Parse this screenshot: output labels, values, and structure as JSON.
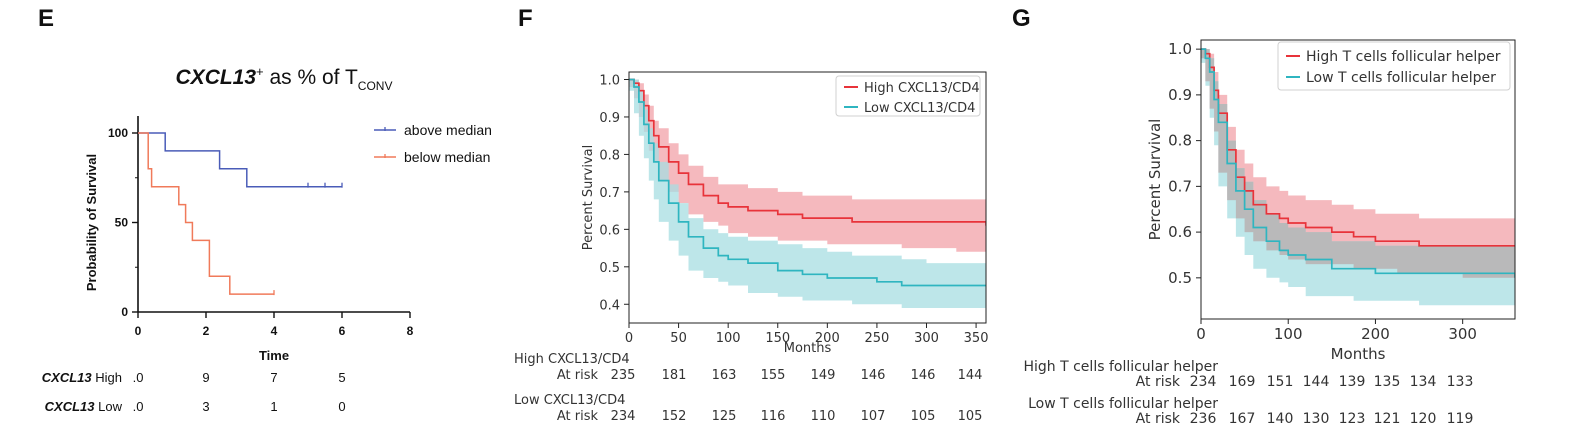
{
  "panels": {
    "e": "E",
    "f": "F",
    "g": "G"
  },
  "chart_data": [
    {
      "panel": "E",
      "type": "line",
      "title_main": "CXCL13",
      "title_sup": "+",
      "title_rest": " as % of T",
      "title_sub": "CONV",
      "xlabel": "Time",
      "ylabel": "Probability of Survival",
      "xlim": [
        0,
        8
      ],
      "ylim": [
        0,
        100
      ],
      "xticks": [
        0,
        2,
        4,
        6,
        8
      ],
      "yticks": [
        0,
        50,
        100
      ],
      "grid": false,
      "legend_position": "top-right",
      "series": [
        {
          "name": "above median",
          "color": "#4a5cb8",
          "x": [
            0,
            0.8,
            0.8,
            2.4,
            2.4,
            3.2,
            3.2,
            6
          ],
          "y": [
            100,
            100,
            90,
            90,
            80,
            80,
            70,
            70
          ],
          "censor_x": [
            5,
            5.5,
            6
          ],
          "censor_y": [
            70,
            70,
            70
          ]
        },
        {
          "name": "below median",
          "color": "#f07a5a",
          "x": [
            0,
            0.3,
            0.3,
            0.4,
            0.4,
            1.2,
            1.2,
            1.4,
            1.4,
            1.6,
            1.6,
            2.1,
            2.1,
            2.7,
            2.7,
            4
          ],
          "y": [
            100,
            100,
            80,
            80,
            70,
            70,
            60,
            60,
            50,
            50,
            40,
            40,
            20,
            20,
            10,
            10
          ],
          "censor_x": [
            4
          ],
          "censor_y": [
            10
          ]
        }
      ],
      "risk_table": {
        "rows": [
          {
            "label_gene": "CXCL13",
            "label_rest": " High",
            "values": [
              ".0",
              "9",
              "7",
              "5"
            ]
          },
          {
            "label_gene": "CXCL13",
            "label_rest": " Low",
            "values": [
              ".0",
              "3",
              "1",
              "0"
            ]
          }
        ]
      }
    },
    {
      "panel": "F",
      "type": "line",
      "xlabel": "Months",
      "ylabel": "Percent Survival",
      "xlim": [
        0,
        360
      ],
      "ylim": [
        0.35,
        1.02
      ],
      "xticks": [
        0,
        50,
        100,
        150,
        200,
        250,
        300,
        350
      ],
      "yticks": [
        0.4,
        0.5,
        0.6,
        0.7,
        0.8,
        0.9,
        1.0
      ],
      "ytick_labels": [
        "0.4",
        "0.5",
        "0.6",
        "0.7",
        "0.8",
        "0.9",
        "1.0"
      ],
      "grid": false,
      "legend_position": "top-right",
      "series": [
        {
          "name": "High CXCL13/CD4",
          "color": "#e8333a",
          "band_color": "#f2a2a8",
          "x": [
            0,
            5,
            10,
            15,
            20,
            25,
            30,
            40,
            50,
            60,
            75,
            90,
            100,
            120,
            150,
            175,
            200,
            225,
            250,
            275,
            300,
            330,
            360
          ],
          "y": [
            1.0,
            0.99,
            0.97,
            0.93,
            0.89,
            0.85,
            0.82,
            0.78,
            0.75,
            0.72,
            0.69,
            0.67,
            0.66,
            0.65,
            0.64,
            0.63,
            0.63,
            0.62,
            0.62,
            0.62,
            0.62,
            0.62,
            0.61
          ],
          "lower": [
            1.0,
            0.98,
            0.95,
            0.9,
            0.86,
            0.81,
            0.78,
            0.73,
            0.7,
            0.67,
            0.64,
            0.62,
            0.61,
            0.59,
            0.58,
            0.57,
            0.57,
            0.56,
            0.56,
            0.56,
            0.55,
            0.55,
            0.54
          ],
          "upper": [
            1.0,
            1.0,
            0.99,
            0.96,
            0.93,
            0.89,
            0.87,
            0.83,
            0.8,
            0.77,
            0.74,
            0.72,
            0.72,
            0.71,
            0.7,
            0.69,
            0.69,
            0.68,
            0.68,
            0.68,
            0.68,
            0.68,
            0.67
          ]
        },
        {
          "name": "Low CXCL13/CD4",
          "color": "#2fb5c0",
          "band_color": "#a7dde2",
          "x": [
            0,
            5,
            10,
            15,
            20,
            25,
            30,
            40,
            50,
            60,
            75,
            90,
            100,
            120,
            150,
            175,
            200,
            225,
            250,
            275,
            300,
            330,
            360
          ],
          "y": [
            1.0,
            0.98,
            0.94,
            0.88,
            0.83,
            0.78,
            0.73,
            0.67,
            0.62,
            0.58,
            0.55,
            0.53,
            0.52,
            0.51,
            0.49,
            0.48,
            0.47,
            0.47,
            0.46,
            0.45,
            0.45,
            0.45,
            0.45
          ],
          "lower": [
            1.0,
            0.97,
            0.91,
            0.85,
            0.79,
            0.73,
            0.68,
            0.62,
            0.57,
            0.53,
            0.49,
            0.47,
            0.46,
            0.45,
            0.43,
            0.42,
            0.41,
            0.41,
            0.4,
            0.4,
            0.39,
            0.39,
            0.39
          ],
          "upper": [
            1.0,
            1.0,
            0.97,
            0.92,
            0.87,
            0.83,
            0.78,
            0.72,
            0.67,
            0.63,
            0.6,
            0.59,
            0.58,
            0.57,
            0.56,
            0.55,
            0.54,
            0.53,
            0.53,
            0.52,
            0.51,
            0.51,
            0.51
          ]
        }
      ],
      "risk_table": {
        "rows": [
          {
            "label": "High CXCL13/CD4",
            "prefix": "At risk",
            "values": [
              "235",
              "181",
              "163",
              "155",
              "149",
              "146",
              "146",
              "144"
            ]
          },
          {
            "label": "Low CXCL13/CD4",
            "prefix": "At risk",
            "values": [
              "234",
              "152",
              "125",
              "116",
              "110",
              "107",
              "105",
              "105"
            ]
          }
        ]
      }
    },
    {
      "panel": "G",
      "type": "line",
      "xlabel": "Months",
      "ylabel": "Percent Survival",
      "xlim": [
        0,
        360
      ],
      "ylim": [
        0.41,
        1.02
      ],
      "xticks": [
        0,
        100,
        200,
        300
      ],
      "yticks": [
        0.5,
        0.6,
        0.7,
        0.8,
        0.9,
        1.0
      ],
      "ytick_labels": [
        "0.5",
        "0.6",
        "0.7",
        "0.8",
        "0.9",
        "1.0"
      ],
      "grid": false,
      "legend_position": "top-right",
      "series": [
        {
          "name": "High T cells follicular helper",
          "color": "#e8333a",
          "band_color": "#f2a2a8",
          "x": [
            0,
            5,
            10,
            15,
            20,
            30,
            40,
            50,
            60,
            75,
            90,
            100,
            120,
            150,
            175,
            200,
            225,
            250,
            275,
            300,
            330,
            360
          ],
          "y": [
            1.0,
            0.99,
            0.96,
            0.91,
            0.86,
            0.78,
            0.72,
            0.69,
            0.66,
            0.64,
            0.63,
            0.62,
            0.61,
            0.6,
            0.59,
            0.58,
            0.58,
            0.57,
            0.57,
            0.57,
            0.57,
            0.57
          ],
          "lower": [
            1.0,
            0.98,
            0.93,
            0.87,
            0.82,
            0.73,
            0.67,
            0.63,
            0.6,
            0.58,
            0.56,
            0.55,
            0.54,
            0.53,
            0.53,
            0.52,
            0.52,
            0.51,
            0.51,
            0.51,
            0.5,
            0.5
          ],
          "upper": [
            1.0,
            1.0,
            0.99,
            0.95,
            0.9,
            0.83,
            0.78,
            0.75,
            0.72,
            0.7,
            0.69,
            0.68,
            0.67,
            0.66,
            0.65,
            0.64,
            0.64,
            0.63,
            0.63,
            0.63,
            0.63,
            0.63
          ]
        },
        {
          "name": "Low T cells follicular helper",
          "color": "#2fb5c0",
          "band_color": "#a7dde2",
          "x": [
            0,
            5,
            10,
            15,
            20,
            30,
            40,
            50,
            60,
            75,
            90,
            100,
            120,
            150,
            175,
            200,
            225,
            250,
            275,
            300,
            330,
            360
          ],
          "y": [
            1.0,
            0.98,
            0.95,
            0.89,
            0.84,
            0.75,
            0.69,
            0.65,
            0.61,
            0.58,
            0.56,
            0.55,
            0.54,
            0.52,
            0.52,
            0.51,
            0.51,
            0.51,
            0.51,
            0.51,
            0.51,
            0.5
          ],
          "lower": [
            1.0,
            0.97,
            0.92,
            0.85,
            0.79,
            0.7,
            0.63,
            0.59,
            0.55,
            0.52,
            0.5,
            0.49,
            0.48,
            0.46,
            0.46,
            0.45,
            0.45,
            0.45,
            0.44,
            0.44,
            0.44,
            0.44
          ],
          "upper": [
            1.0,
            1.0,
            0.98,
            0.93,
            0.88,
            0.8,
            0.74,
            0.71,
            0.67,
            0.64,
            0.62,
            0.61,
            0.6,
            0.58,
            0.58,
            0.57,
            0.57,
            0.57,
            0.57,
            0.57,
            0.57,
            0.56
          ]
        }
      ],
      "risk_table": {
        "rows": [
          {
            "label": "High T cells follicular helper",
            "prefix": "At risk",
            "values": [
              "234",
              "169",
              "151",
              "144",
              "139",
              "135",
              "134",
              "133"
            ]
          },
          {
            "label": "Low T cells follicular helper",
            "prefix": "At risk",
            "values": [
              "236",
              "167",
              "140",
              "130",
              "123",
              "121",
              "120",
              "119"
            ]
          }
        ]
      }
    }
  ]
}
